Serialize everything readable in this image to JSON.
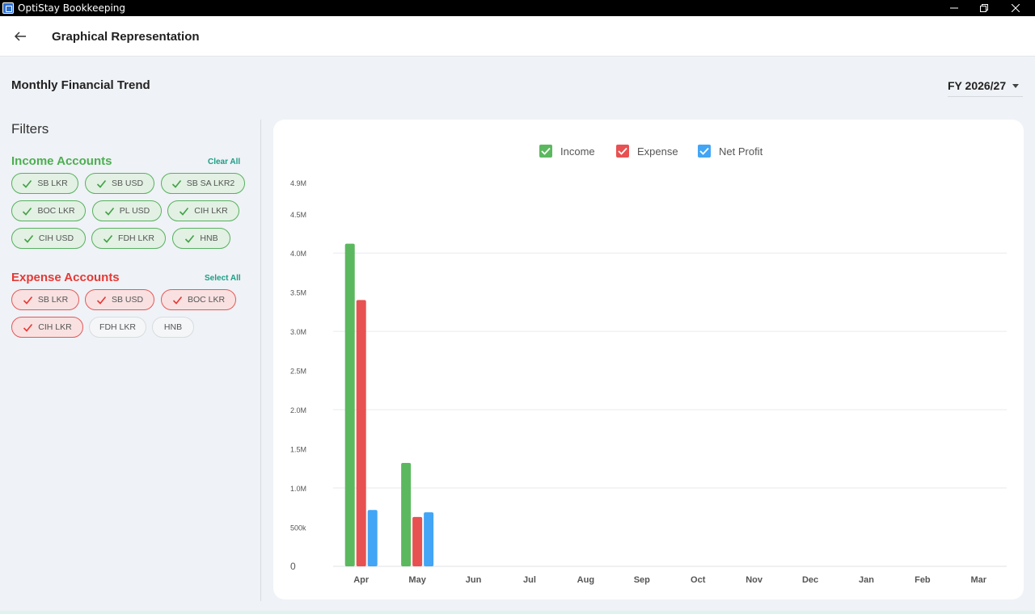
{
  "window": {
    "title": "OptiStay Bookkeeping"
  },
  "header": {
    "title": "Graphical Representation"
  },
  "section": {
    "title": "Monthly Financial Trend",
    "fy_value": "FY 2026/27"
  },
  "filters": {
    "title": "Filters",
    "income": {
      "title": "Income Accounts",
      "action": "Clear All",
      "chips": [
        {
          "label": "SB LKR",
          "checked": true
        },
        {
          "label": "SB USD",
          "checked": true
        },
        {
          "label": "SB SA LKR2",
          "checked": true
        },
        {
          "label": "BOC LKR",
          "checked": true
        },
        {
          "label": "PL USD",
          "checked": true
        },
        {
          "label": "CIH LKR",
          "checked": true
        },
        {
          "label": "CIH USD",
          "checked": true
        },
        {
          "label": "FDH LKR",
          "checked": true
        },
        {
          "label": "HNB",
          "checked": true
        }
      ]
    },
    "expense": {
      "title": "Expense Accounts",
      "action": "Select All",
      "chips": [
        {
          "label": "SB LKR",
          "checked": true
        },
        {
          "label": "SB USD",
          "checked": true
        },
        {
          "label": "BOC LKR",
          "checked": true
        },
        {
          "label": "CIH LKR",
          "checked": true
        },
        {
          "label": "FDH LKR",
          "checked": false
        },
        {
          "label": "HNB",
          "checked": false
        }
      ]
    }
  },
  "colors": {
    "income": "#5cb85f",
    "expense": "#e85151",
    "net_profit": "#42a5f5",
    "income_text": "#4caf50",
    "expense_text": "#e53935",
    "link": "#1c9e86"
  },
  "chart_data": {
    "type": "bar",
    "categories": [
      "Apr",
      "May",
      "Jun",
      "Jul",
      "Aug",
      "Sep",
      "Oct",
      "Nov",
      "Dec",
      "Jan",
      "Feb",
      "Mar"
    ],
    "series": [
      {
        "name": "Income",
        "values": [
          4120000,
          1320000,
          0,
          0,
          0,
          0,
          0,
          0,
          0,
          0,
          0,
          0
        ]
      },
      {
        "name": "Expense",
        "values": [
          3400000,
          630000,
          0,
          0,
          0,
          0,
          0,
          0,
          0,
          0,
          0,
          0
        ]
      },
      {
        "name": "Net Profit",
        "values": [
          720000,
          690000,
          0,
          0,
          0,
          0,
          0,
          0,
          0,
          0,
          0,
          0
        ]
      }
    ],
    "y_ticks": [
      {
        "value": 0,
        "label": "0"
      },
      {
        "value": 500000,
        "label": "500k"
      },
      {
        "value": 1000000,
        "label": "1.0M"
      },
      {
        "value": 1500000,
        "label": "1.5M"
      },
      {
        "value": 2000000,
        "label": "2.0M"
      },
      {
        "value": 2500000,
        "label": "2.5M"
      },
      {
        "value": 3000000,
        "label": "3.0M"
      },
      {
        "value": 3500000,
        "label": "3.5M"
      },
      {
        "value": 4000000,
        "label": "4.0M"
      },
      {
        "value": 4500000,
        "label": "4.5M"
      },
      {
        "value": 4900000,
        "label": "4.9M"
      }
    ],
    "ylim": [
      0,
      4900000
    ],
    "legend": "top-center",
    "grid": true
  }
}
